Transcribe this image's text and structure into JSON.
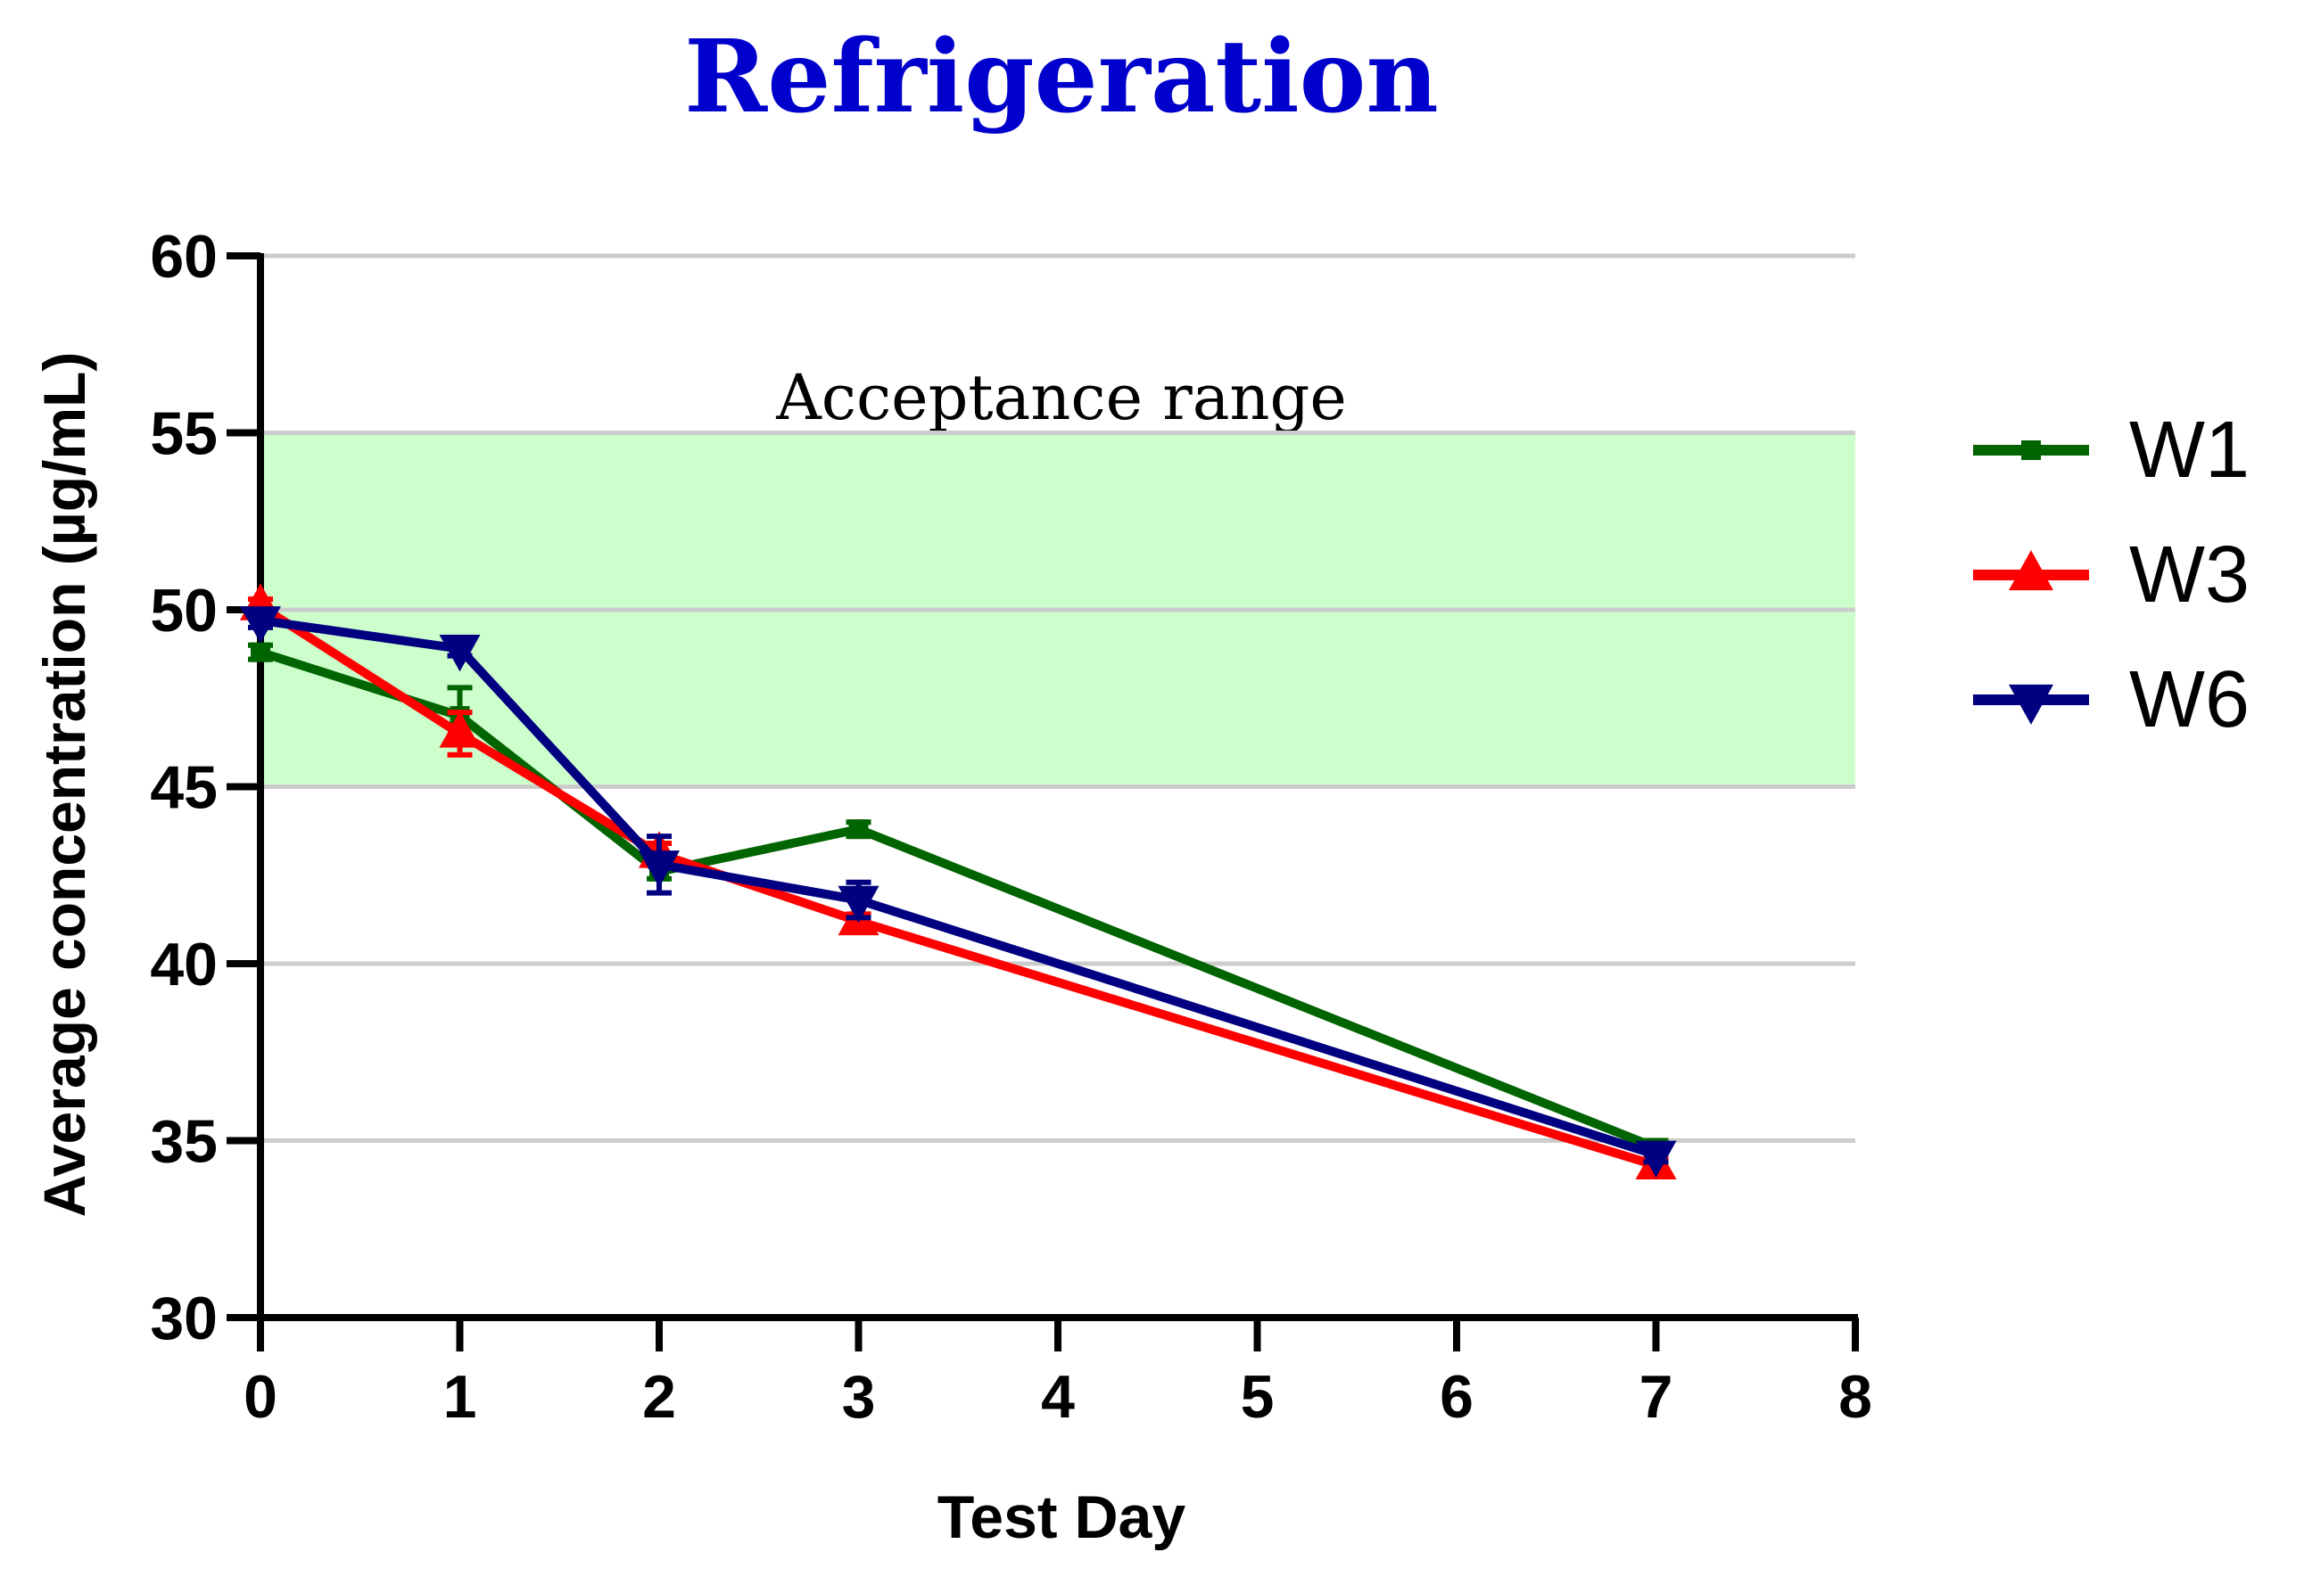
{
  "chart_data": {
    "type": "line",
    "title": "Refrigeration",
    "xlabel": "Test Day",
    "ylabel": "Average concentration (µg/mL)",
    "xlim": [
      0,
      8
    ],
    "ylim": [
      30,
      60
    ],
    "x_ticks": [
      0,
      1,
      2,
      3,
      4,
      5,
      6,
      7,
      8
    ],
    "y_ticks": [
      30,
      35,
      40,
      45,
      50,
      55,
      60
    ],
    "grid": "horizontal",
    "legend_position": "right",
    "band": {
      "label": "Acceptance range",
      "y_min": 45,
      "y_max": 55,
      "color": "#ccffcc"
    },
    "series": [
      {
        "name": "W1",
        "color": "#006400",
        "marker": "square",
        "x": [
          0,
          1,
          2,
          3,
          7
        ],
        "y": [
          48.8,
          47.0,
          42.6,
          43.8,
          34.8
        ],
        "error": [
          0.2,
          0.8,
          0.2,
          0.2,
          0.2
        ]
      },
      {
        "name": "W3",
        "color": "#ff0000",
        "marker": "triangle-up",
        "x": [
          0,
          1,
          2,
          3,
          7
        ],
        "y": [
          50.1,
          46.5,
          43.1,
          41.2,
          34.3
        ],
        "error": [
          0.2,
          0.6,
          0.3,
          0.2,
          0.2
        ]
      },
      {
        "name": "W6",
        "color": "#000080",
        "marker": "triangle-down",
        "x": [
          0,
          1,
          2,
          3,
          7
        ],
        "y": [
          49.7,
          48.9,
          42.8,
          41.8,
          34.6
        ],
        "error": [
          0.2,
          0.2,
          0.8,
          0.5,
          0.2
        ]
      }
    ]
  },
  "colors": {
    "title": "#0000cc",
    "axis": "#000000",
    "grid": "#cccccc"
  }
}
